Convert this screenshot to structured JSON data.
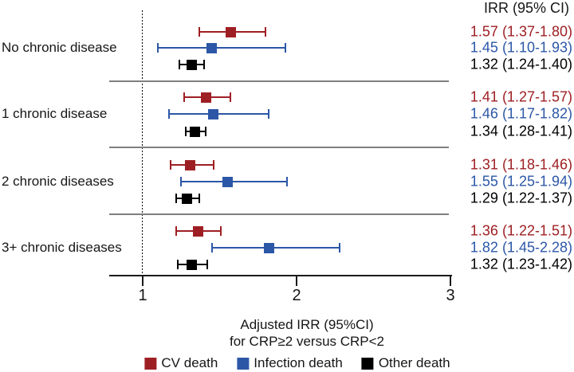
{
  "figure": {
    "irr_header": "IRR (95% CI)",
    "xlabel_line1": "Adjusted IRR (95%CI)",
    "xlabel_line2": "for CRP≥2 versus CRP<2"
  },
  "chart_data": {
    "type": "forest",
    "title": "",
    "xlabel": "Adjusted IRR (95%CI) for CRP≥2 versus CRP<2",
    "ylabel": "",
    "x_ticks": [
      1,
      2,
      3
    ],
    "xlim": [
      0.78,
      3.02
    ],
    "reference_line_x": 1,
    "reference_line_style": "dotted",
    "grid": false,
    "legend_position": "bottom",
    "value_column_header": "IRR (95% CI)",
    "series": [
      {
        "name": "CV death",
        "color": "#9E1F23"
      },
      {
        "name": "Infection death",
        "color": "#2C57A7"
      },
      {
        "name": "Other death",
        "color": "#000000"
      }
    ],
    "groups": [
      {
        "label": "No chronic disease",
        "estimates": [
          {
            "series": "CV death",
            "irr": 1.57,
            "ci_low": 1.37,
            "ci_high": 1.8,
            "text": "1.57 (1.37-1.80)"
          },
          {
            "series": "Infection death",
            "irr": 1.45,
            "ci_low": 1.1,
            "ci_high": 1.93,
            "text": "1.45 (1.10-1.93)"
          },
          {
            "series": "Other death",
            "irr": 1.32,
            "ci_low": 1.24,
            "ci_high": 1.4,
            "text": "1.32 (1.24-1.40)"
          }
        ]
      },
      {
        "label": "1 chronic disease",
        "estimates": [
          {
            "series": "CV death",
            "irr": 1.41,
            "ci_low": 1.27,
            "ci_high": 1.57,
            "text": "1.41 (1.27-1.57)"
          },
          {
            "series": "Infection death",
            "irr": 1.46,
            "ci_low": 1.17,
            "ci_high": 1.82,
            "text": "1.46 (1.17-1.82)"
          },
          {
            "series": "Other death",
            "irr": 1.34,
            "ci_low": 1.28,
            "ci_high": 1.41,
            "text": "1.34 (1.28-1.41)"
          }
        ]
      },
      {
        "label": "2 chronic diseases",
        "estimates": [
          {
            "series": "CV death",
            "irr": 1.31,
            "ci_low": 1.18,
            "ci_high": 1.46,
            "text": "1.31 (1.18-1.46)"
          },
          {
            "series": "Infection death",
            "irr": 1.55,
            "ci_low": 1.25,
            "ci_high": 1.94,
            "text": "1.55 (1.25-1.94)"
          },
          {
            "series": "Other death",
            "irr": 1.29,
            "ci_low": 1.22,
            "ci_high": 1.37,
            "text": "1.29 (1.22-1.37)"
          }
        ]
      },
      {
        "label": "3+ chronic diseases",
        "estimates": [
          {
            "series": "CV death",
            "irr": 1.36,
            "ci_low": 1.22,
            "ci_high": 1.51,
            "text": "1.36 (1.22-1.51)"
          },
          {
            "series": "Infection death",
            "irr": 1.82,
            "ci_low": 1.45,
            "ci_high": 2.28,
            "text": "1.82 (1.45-2.28)"
          },
          {
            "series": "Other death",
            "irr": 1.32,
            "ci_low": 1.23,
            "ci_high": 1.42,
            "text": "1.32 (1.23-1.42)"
          }
        ]
      }
    ]
  }
}
